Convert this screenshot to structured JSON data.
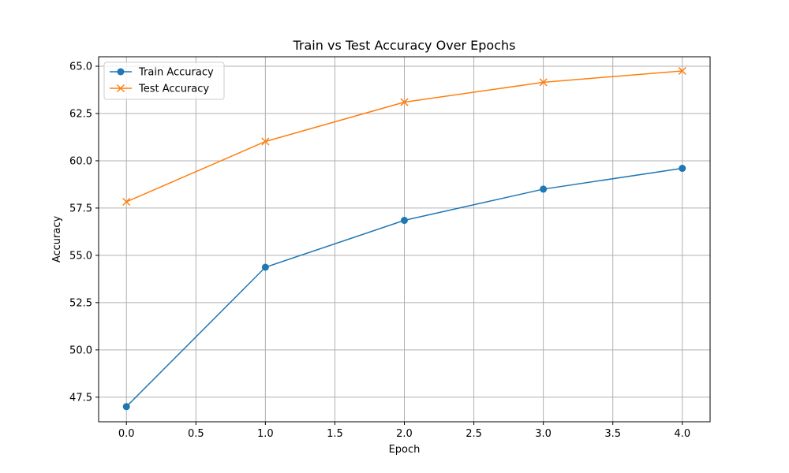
{
  "chart_data": {
    "type": "line",
    "title": "Train vs Test Accuracy Over Epochs",
    "xlabel": "Epoch",
    "ylabel": "Accuracy",
    "x": [
      0,
      1,
      2,
      3,
      4
    ],
    "xlim": [
      -0.2,
      4.2
    ],
    "ylim": [
      46.2,
      65.5
    ],
    "xticks": [
      0.0,
      0.5,
      1.0,
      1.5,
      2.0,
      2.5,
      3.0,
      3.5,
      4.0
    ],
    "xtick_labels": [
      "0.0",
      "0.5",
      "1.0",
      "1.5",
      "2.0",
      "2.5",
      "3.0",
      "3.5",
      "4.0"
    ],
    "yticks": [
      47.5,
      50.0,
      52.5,
      55.0,
      57.5,
      60.0,
      62.5,
      65.0
    ],
    "ytick_labels": [
      "47.5",
      "50.0",
      "52.5",
      "55.0",
      "57.5",
      "60.0",
      "62.5",
      "65.0"
    ],
    "grid": true,
    "legend_position": "top-left",
    "series": [
      {
        "name": "Train Accuracy",
        "color": "#1f77b4",
        "marker": "circle",
        "values": [
          47.0,
          54.37,
          56.85,
          58.5,
          59.6
        ]
      },
      {
        "name": "Test Accuracy",
        "color": "#ff7f0e",
        "marker": "x",
        "values": [
          57.83,
          61.02,
          63.1,
          64.15,
          64.75
        ]
      }
    ]
  }
}
